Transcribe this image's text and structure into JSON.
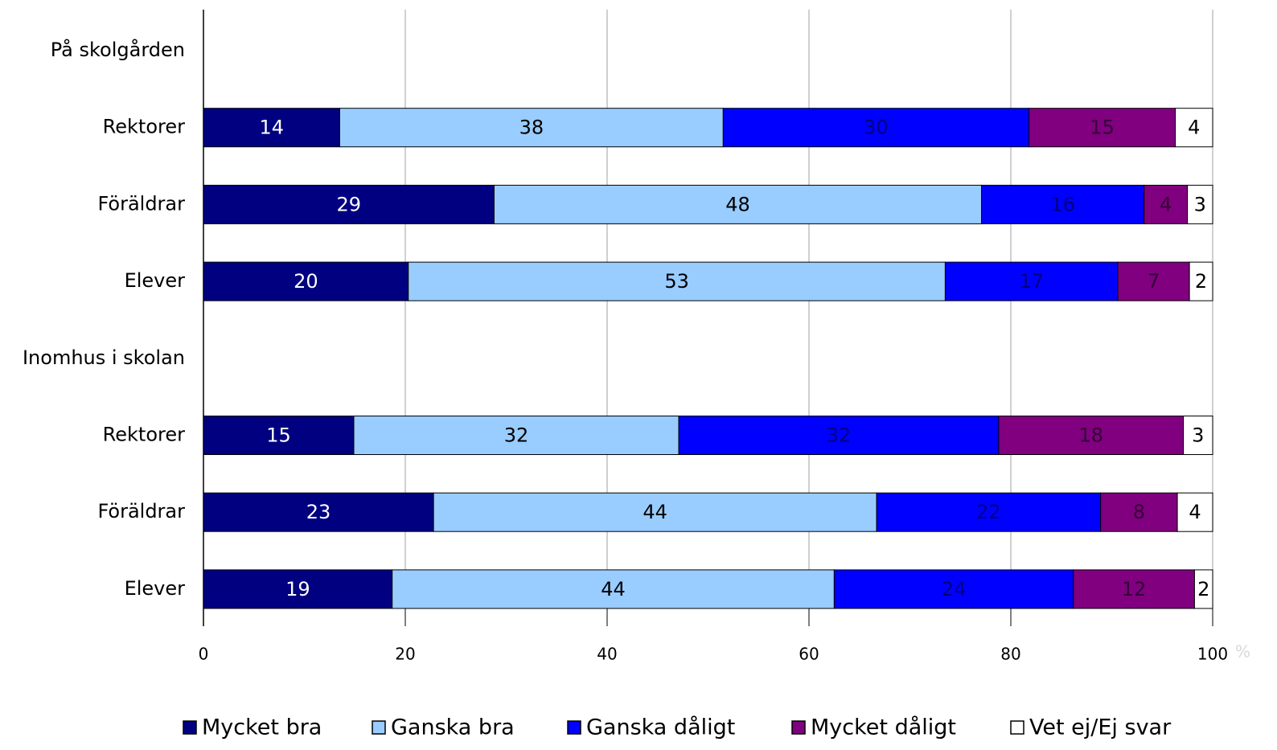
{
  "chart_data": {
    "type": "stacked_barh",
    "categories": [
      "På skolgården",
      "Rektorer",
      "Föräldrar",
      "Elever",
      "Inomhus i skolan",
      "Rektorer",
      "Föräldrar",
      "Elever"
    ],
    "series": [
      {
        "name": "Mycket bra",
        "color": "#000080",
        "label_color": "#ffffff",
        "values": [
          null,
          13.5,
          28.8,
          20.3,
          null,
          14.9,
          22.8,
          18.7
        ],
        "value_labels": [
          null,
          "14",
          "29",
          "20",
          null,
          "15",
          "23",
          "19"
        ]
      },
      {
        "name": "Ganska bra",
        "color": "#99ccff",
        "label_color": "#000000",
        "values": [
          null,
          38.0,
          48.3,
          53.2,
          null,
          32.2,
          43.9,
          43.8
        ],
        "value_labels": [
          null,
          "38",
          "48",
          "53",
          null,
          "32",
          "44",
          "44"
        ]
      },
      {
        "name": "Ganska dåligt",
        "color": "#0000ff",
        "label_color": "#000080",
        "values": [
          null,
          30.3,
          16.1,
          17.1,
          null,
          31.7,
          22.2,
          23.7
        ],
        "value_labels": [
          null,
          "30",
          "16",
          "17",
          null,
          "32",
          "22",
          "24"
        ]
      },
      {
        "name": "Mycket dåligt",
        "color": "#800080",
        "label_color": "#330033",
        "values": [
          null,
          14.5,
          4.3,
          7.1,
          null,
          18.3,
          7.6,
          12.0
        ],
        "value_labels": [
          null,
          "15",
          "4",
          "7",
          null,
          "18",
          "8",
          "12"
        ]
      },
      {
        "name": "Vet ej/Ej svar",
        "color": "#ffffff",
        "label_color": "#000000",
        "values": [
          null,
          3.7,
          2.5,
          2.3,
          null,
          2.9,
          3.5,
          1.8
        ],
        "value_labels": [
          null,
          "4",
          "3",
          "2",
          null,
          "3",
          "4",
          "2"
        ]
      }
    ],
    "xlim": [
      0,
      100
    ],
    "xticks": [
      0,
      20,
      40,
      60,
      80,
      100
    ],
    "x_unit": "%",
    "grid": true,
    "legend": "bottom"
  }
}
